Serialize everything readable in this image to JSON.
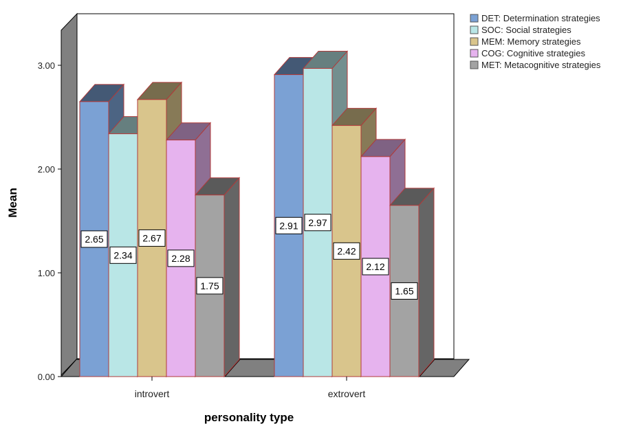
{
  "chart_data": {
    "type": "bar",
    "xlabel": "personality type",
    "ylabel": "Mean",
    "ylim": [
      0,
      3.0
    ],
    "yticks": [
      "0.00",
      "1.00",
      "2.00",
      "3.00"
    ],
    "categories": [
      "introvert",
      "extrovert"
    ],
    "legend_position": "top-right",
    "series": [
      {
        "name": "DET: Determination strategies",
        "values": [
          2.65,
          2.91
        ],
        "labels": [
          "2.65",
          "2.91"
        ],
        "color": "#7ba1d4"
      },
      {
        "name": "SOC: Social strategies",
        "values": [
          2.34,
          2.97
        ],
        "labels": [
          "2.34",
          "2.97"
        ],
        "color": "#b9e6e6"
      },
      {
        "name": "MEM: Memory strategies",
        "values": [
          2.67,
          2.42
        ],
        "labels": [
          "2.67",
          "2.42"
        ],
        "color": "#d9c58c"
      },
      {
        "name": "COG: Cognitive strategies",
        "values": [
          2.28,
          2.12
        ],
        "labels": [
          "2.28",
          "2.12"
        ],
        "color": "#e6b3ee"
      },
      {
        "name": "MET: Metacognitive strategies",
        "values": [
          1.75,
          1.65
        ],
        "labels": [
          "1.75",
          "1.65"
        ],
        "color": "#a3a3a3"
      }
    ]
  }
}
